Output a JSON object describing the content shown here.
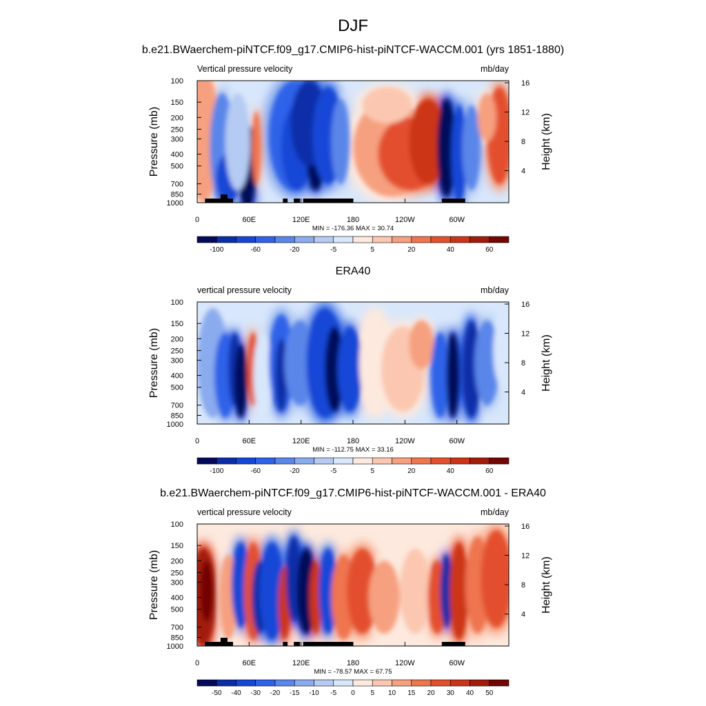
{
  "page": {
    "title": "DJF"
  },
  "chart_data": [
    {
      "type": "heatmap",
      "title": "b.e21.BWaerchem-piNTCF.f09_g17.CMIP6-hist-piNTCF-WACCM.001 (yrs 1851-1880)",
      "left_label": "Vertical pressure velocity",
      "right_label": "mb/day",
      "ylabel": "Pressure (mb)",
      "ylabel_right": "Height (km)",
      "x_ticks": [
        "0",
        "60E",
        "120E",
        "180",
        "120W",
        "60W"
      ],
      "y_ticks": [
        "100",
        "150",
        "200",
        "250",
        "300",
        "400",
        "500",
        "700",
        "850",
        "1000"
      ],
      "y_ticks_right": [
        "16",
        "12",
        "8",
        "4"
      ],
      "stats": "MIN = -176.36  MAX =  30.74",
      "colorbar_labels": [
        "-100",
        "-60",
        "-20",
        "-5",
        "5",
        "20",
        "40",
        "60"
      ],
      "colorbar_colors": [
        "#05095a",
        "#0b2ea8",
        "#1447d6",
        "#2e62e8",
        "#5a86ea",
        "#8aabee",
        "#b5cbf3",
        "#d8e7fb",
        "#fde9de",
        "#fbc7b0",
        "#f6a07f",
        "#ef754f",
        "#e3502d",
        "#cc3417",
        "#a21c0b",
        "#720604"
      ],
      "xlim": [
        0,
        360
      ],
      "ylim": [
        1000,
        100
      ]
    },
    {
      "type": "heatmap",
      "title": "ERA40",
      "left_label": "vertical pressure velocity",
      "right_label": "mb/day",
      "ylabel": "Pressure (mb)",
      "ylabel_right": "Height (km)",
      "x_ticks": [
        "0",
        "60E",
        "120E",
        "180",
        "120W",
        "60W"
      ],
      "y_ticks": [
        "100",
        "150",
        "200",
        "250",
        "300",
        "400",
        "500",
        "700",
        "850",
        "1000"
      ],
      "y_ticks_right": [
        "16",
        "12",
        "8",
        "4"
      ],
      "stats": "MIN = -112.75  MAX =  33.16",
      "colorbar_labels": [
        "-100",
        "-60",
        "-20",
        "-5",
        "5",
        "20",
        "40",
        "60"
      ],
      "colorbar_colors": [
        "#05095a",
        "#0b2ea8",
        "#1447d6",
        "#2e62e8",
        "#5a86ea",
        "#8aabee",
        "#b5cbf3",
        "#d8e7fb",
        "#fde9de",
        "#fbc7b0",
        "#f6a07f",
        "#ef754f",
        "#e3502d",
        "#cc3417",
        "#a21c0b",
        "#720604"
      ],
      "xlim": [
        0,
        360
      ],
      "ylim": [
        1000,
        100
      ]
    },
    {
      "type": "heatmap",
      "title": "b.e21.BWaerchem-piNTCF.f09_g17.CMIP6-hist-piNTCF-WACCM.001 - ERA40",
      "left_label": "vertical pressure velocity",
      "right_label": "mb/day",
      "ylabel": "Pressure (mb)",
      "ylabel_right": "Height (km)",
      "x_ticks": [
        "0",
        "60E",
        "120E",
        "180",
        "120W",
        "60W"
      ],
      "y_ticks": [
        "100",
        "150",
        "200",
        "250",
        "300",
        "400",
        "500",
        "700",
        "850",
        "1000"
      ],
      "y_ticks_right": [
        "16",
        "12",
        "8",
        "4"
      ],
      "stats": "MIN = -78.57  MAX =  67.75",
      "colorbar_labels": [
        "-50",
        "-40",
        "-30",
        "-20",
        "-15",
        "-10",
        "-5",
        "0",
        "5",
        "10",
        "15",
        "20",
        "30",
        "40",
        "50"
      ],
      "colorbar_colors": [
        "#05095a",
        "#0b2ea8",
        "#1447d6",
        "#2e62e8",
        "#5a86ea",
        "#8aabee",
        "#b5cbf3",
        "#d8e7fb",
        "#fde9de",
        "#fbc7b0",
        "#f6a07f",
        "#ef754f",
        "#e3502d",
        "#cc3417",
        "#a21c0b",
        "#720604"
      ],
      "xlim": [
        0,
        360
      ],
      "ylim": [
        1000,
        100
      ]
    }
  ]
}
